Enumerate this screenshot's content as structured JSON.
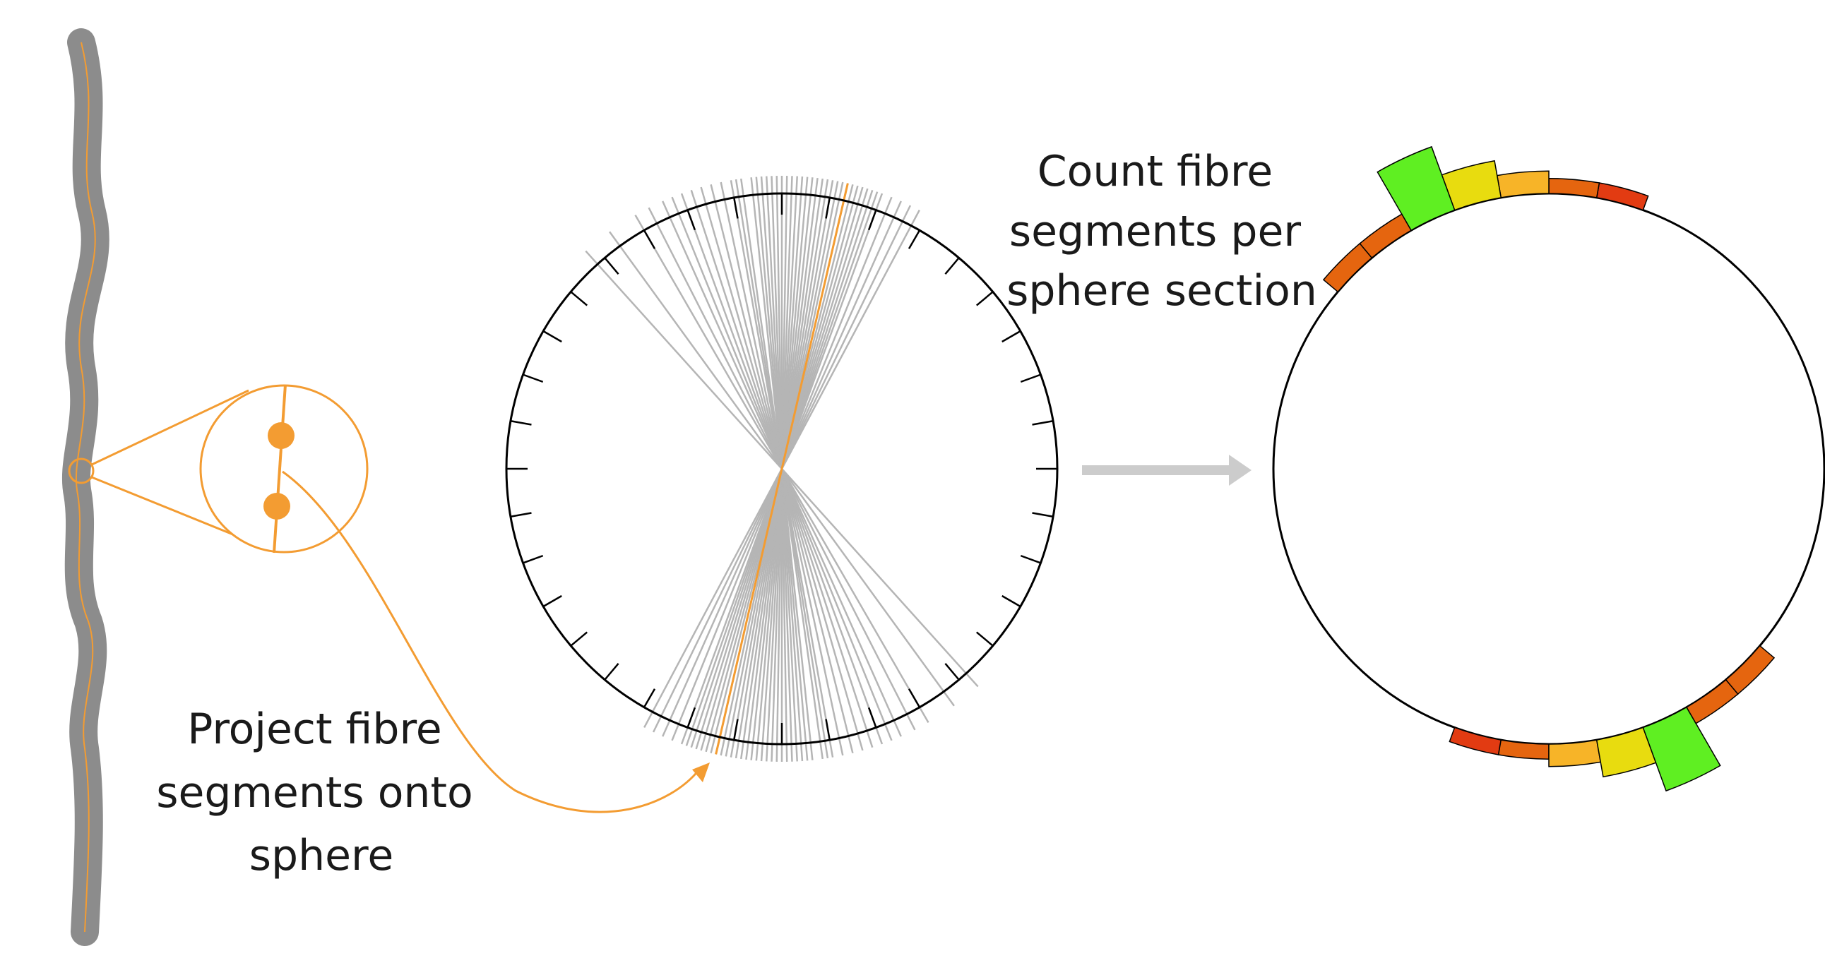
{
  "labels": {
    "project_lines": [
      "Project fibre",
      "segments onto",
      "sphere"
    ],
    "count_lines": [
      "Count fibre",
      "segments per",
      "sphere section"
    ]
  },
  "colors": {
    "fibre_body": "#8c8c8c",
    "fibre_axis": "#f39c32",
    "highlight": "#f39c32",
    "projected_line": "#b5b5b5",
    "circle_stroke": "#000000",
    "arrow": "#cccccc"
  },
  "projection_sphere": {
    "tick_count": 36,
    "projected_segment_angles_deg": [
      62,
      64,
      66,
      68,
      70,
      71,
      72,
      73,
      74,
      75,
      76,
      77,
      78,
      79,
      80,
      81,
      82,
      83,
      84,
      85,
      86,
      87,
      88,
      89,
      90,
      91,
      92,
      93,
      94,
      95,
      96,
      98,
      99,
      100,
      102,
      104,
      106,
      108,
      110,
      112,
      114,
      117,
      120,
      126,
      132
    ],
    "highlighted_segment_angle_deg": 77
  },
  "histogram_sphere": {
    "sections": [
      {
        "start_deg": 70,
        "end_deg": 80,
        "count": 4,
        "color": "#e23b12"
      },
      {
        "start_deg": 80,
        "end_deg": 90,
        "count": 4,
        "color": "#e5650f"
      },
      {
        "start_deg": 90,
        "end_deg": 100,
        "count": 6,
        "color": "#f7b428"
      },
      {
        "start_deg": 100,
        "end_deg": 110,
        "count": 10,
        "color": "#e8dc0f"
      },
      {
        "start_deg": 110,
        "end_deg": 120,
        "count": 18,
        "color": "#5fef22"
      },
      {
        "start_deg": 120,
        "end_deg": 130,
        "count": 5,
        "color": "#e5650f"
      },
      {
        "start_deg": 130,
        "end_deg": 140,
        "count": 5,
        "color": "#e5650f"
      }
    ]
  }
}
